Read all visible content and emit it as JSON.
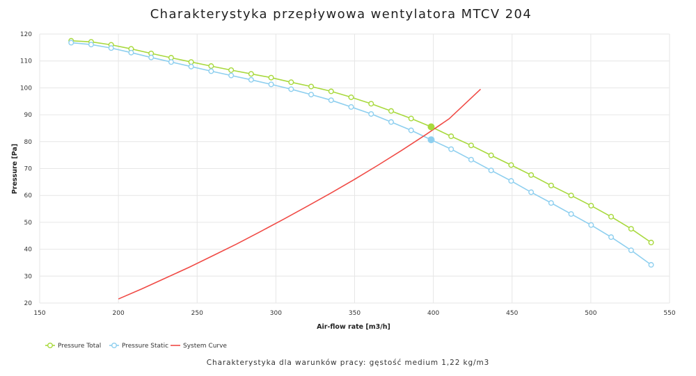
{
  "chart_data": {
    "type": "line",
    "title": "Charakterystyka przepływowa wentylatora MTCV 204",
    "subtitle": "Charakterystyka dla warunków pracy: gęstość medium 1,22 kg/m3",
    "xlabel": "Air-flow rate [m3/h]",
    "ylabel": "Pressure [Pa]",
    "xlim": [
      150,
      550
    ],
    "ylim": [
      20,
      120
    ],
    "x_ticks": [
      150,
      200,
      250,
      300,
      350,
      400,
      450,
      500,
      550
    ],
    "y_ticks": [
      20,
      30,
      40,
      50,
      60,
      70,
      80,
      90,
      100,
      110,
      120
    ],
    "grid": true,
    "legend_position": "bottom-left",
    "series": [
      {
        "name": "Pressure Total",
        "color": "#a8d93d",
        "marker": "circle",
        "x": [
          170,
          182.7,
          195.4,
          208.1,
          220.8,
          233.5,
          246.2,
          258.9,
          271.6,
          284.3,
          297,
          309.7,
          322.4,
          335.1,
          347.8,
          360.5,
          373.2,
          385.9,
          398.6,
          411.3,
          424,
          436.7,
          449.4,
          462.1,
          474.8,
          487.5,
          500.2,
          512.9,
          525.6,
          538.3
        ],
        "y": [
          117.5,
          117.1,
          116,
          114.5,
          112.8,
          111.2,
          109.6,
          108.1,
          106.6,
          105.2,
          103.8,
          102.1,
          100.5,
          98.7,
          96.5,
          94.1,
          91.4,
          88.6,
          85.5,
          82,
          78.6,
          74.9,
          71.3,
          67.6,
          63.7,
          60,
          56.2,
          52.1,
          47.6,
          42.5
        ]
      },
      {
        "name": "Pressure Static",
        "color": "#8ecfef",
        "marker": "circle",
        "x": [
          170,
          182.7,
          195.4,
          208.1,
          220.8,
          233.5,
          246.2,
          258.9,
          271.6,
          284.3,
          297,
          309.7,
          322.4,
          335.1,
          347.8,
          360.5,
          373.2,
          385.9,
          398.6,
          411.3,
          424,
          436.7,
          449.4,
          462.1,
          474.8,
          487.5,
          500.2,
          512.9,
          525.6,
          538.3
        ],
        "y": [
          116.8,
          116.1,
          114.8,
          113.1,
          111.3,
          109.6,
          107.9,
          106.2,
          104.6,
          103,
          101.3,
          99.5,
          97.5,
          95.4,
          92.9,
          90.3,
          87.3,
          84.2,
          80.7,
          77.2,
          73.3,
          69.3,
          65.4,
          61.2,
          57.2,
          53.1,
          49,
          44.5,
          39.6,
          34.2
        ]
      },
      {
        "name": "System Curve",
        "color": "#f04a45",
        "marker": "none",
        "x": [
          200,
          215,
          230,
          245,
          260,
          275,
          290,
          305,
          320,
          335,
          350,
          365,
          380,
          395,
          410,
          430
        ],
        "y": [
          21.5,
          25.3,
          29.3,
          33.3,
          37.6,
          41.9,
          46.5,
          51.2,
          56,
          60.9,
          66,
          71.3,
          76.8,
          82.5,
          88.5,
          99.5
        ]
      }
    ],
    "operating_points": [
      {
        "series": "Pressure Total",
        "x": 398.6,
        "y": 85.5,
        "color": "#a8d93d"
      },
      {
        "series": "Pressure Static",
        "x": 398.6,
        "y": 80.7,
        "color": "#8ecfef"
      }
    ]
  }
}
